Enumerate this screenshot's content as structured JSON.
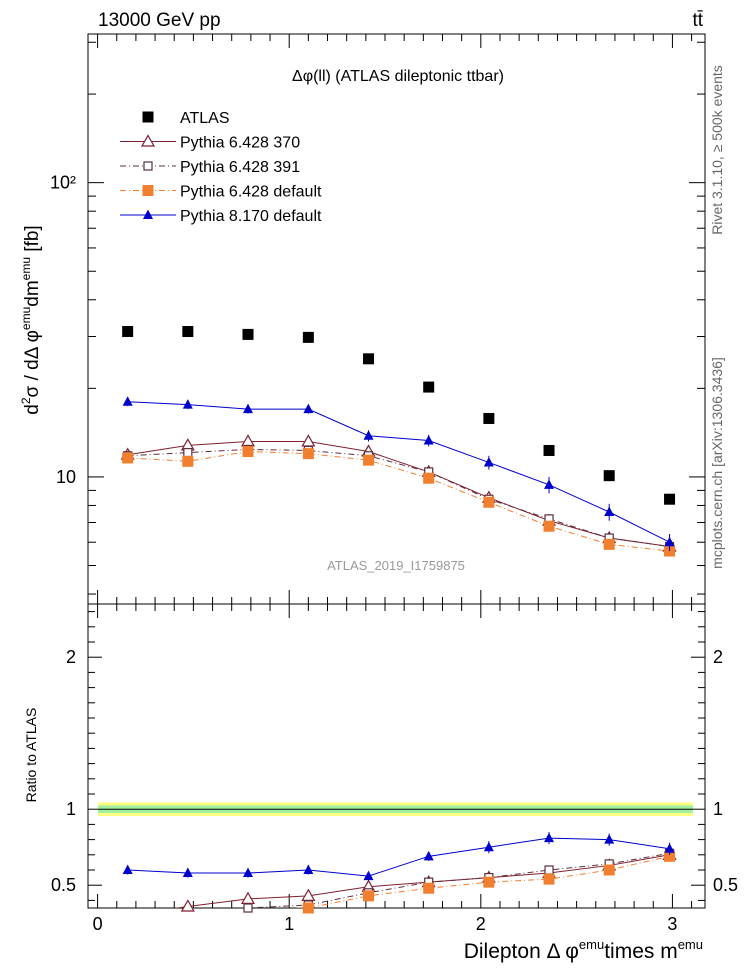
{
  "header": {
    "left": "13000 GeV pp",
    "right": "tt̄"
  },
  "side_labels": {
    "rivet": "Rivet 3.1.10, ≥ 500k events",
    "mcplots": "mcplots.cern.ch [arXiv:1306.3436]"
  },
  "chart_data": {
    "type": "scatter",
    "title": "Δφ(ll) (ATLAS dileptonic ttbar)",
    "watermark": "ATLAS_2019_I1759875",
    "ylabel_main": "d²σ / dΔ φ^emu dm^emu [fb]",
    "ylabel_ratio": "Ratio to ATLAS",
    "xlabel": "Dilepton Δ φ^emu times m^emu",
    "xlim": [
      -0.05,
      3.17
    ],
    "ylim_main": [
      3.7,
      320
    ],
    "ylim_ratio": [
      0.35,
      2.35
    ],
    "yscale_main": "log",
    "main_yticks": [
      10,
      100
    ],
    "main_ytick_labels": [
      "10",
      "10²"
    ],
    "ratio_yticks": [
      0.5,
      1,
      2
    ],
    "ratio_ytick_labels": [
      "0.5",
      "1",
      "2"
    ],
    "xticks": [
      0,
      1,
      2,
      3
    ],
    "xtick_labels": [
      "0",
      "1",
      "2",
      "3"
    ],
    "legend_position": "top-left",
    "x": [
      0.157,
      0.471,
      0.785,
      1.1,
      1.414,
      1.728,
      2.042,
      2.356,
      2.67,
      2.985
    ],
    "series": [
      {
        "name": "ATLAS",
        "color": "#000000",
        "marker": "square-filled",
        "values": [
          31.2,
          31.2,
          30.5,
          29.8,
          25.2,
          20.2,
          15.8,
          12.3,
          10.1,
          8.4
        ],
        "errors": [
          0.6,
          0.6,
          0.6,
          0.6,
          0.5,
          0.4,
          0.3,
          0.25,
          0.2,
          0.2
        ],
        "ratio": [
          1,
          1,
          1,
          1,
          1,
          1,
          1,
          1,
          1,
          1
        ]
      },
      {
        "name": "Pythia 6.428 370",
        "color": "#7f1f2f",
        "marker": "triangle-open",
        "values": [
          11.9,
          12.8,
          13.2,
          13.2,
          12.2,
          10.4,
          8.5,
          7.1,
          6.2,
          5.8
        ],
        "errors": [
          0.3,
          0.3,
          0.3,
          0.3,
          0.3,
          0.25,
          0.2,
          0.2,
          0.2,
          0.2
        ],
        "ratio": [
          0.3,
          0.36,
          0.41,
          0.43,
          0.49,
          0.52,
          0.55,
          0.58,
          0.63,
          0.7
        ]
      },
      {
        "name": "Pythia 6.428 391",
        "color": "#5c2e3a",
        "marker": "square-open",
        "values": [
          11.8,
          12.1,
          12.4,
          12.3,
          11.8,
          10.4,
          8.4,
          7.2,
          6.2,
          5.8
        ],
        "errors": [
          0.3,
          0.3,
          0.3,
          0.3,
          0.3,
          0.25,
          0.2,
          0.2,
          0.2,
          0.2
        ],
        "ratio": [
          0.29,
          0.31,
          0.35,
          0.37,
          0.45,
          0.52,
          0.55,
          0.6,
          0.64,
          0.71
        ]
      },
      {
        "name": "Pythia 6.428 default",
        "color": "#f07f30",
        "marker": "square-filled",
        "values": [
          11.6,
          11.3,
          12.2,
          12.0,
          11.4,
          9.9,
          8.2,
          6.8,
          5.9,
          5.6
        ],
        "errors": [
          0.3,
          0.3,
          0.3,
          0.3,
          0.3,
          0.25,
          0.2,
          0.2,
          0.2,
          0.2
        ],
        "ratio": [
          0.28,
          0.29,
          0.34,
          0.35,
          0.43,
          0.48,
          0.52,
          0.54,
          0.6,
          0.69
        ]
      },
      {
        "name": "Pythia 8.170 default",
        "color": "#0000cc",
        "marker": "triangle-filled",
        "values": [
          18.0,
          17.6,
          17.0,
          17.0,
          13.8,
          13.3,
          11.2,
          9.4,
          7.6,
          6.0
        ],
        "errors": [
          0.6,
          0.6,
          0.6,
          0.6,
          0.6,
          0.6,
          0.6,
          0.6,
          0.5,
          0.4
        ],
        "ratio": [
          0.6,
          0.58,
          0.58,
          0.6,
          0.56,
          0.69,
          0.75,
          0.81,
          0.8,
          0.74
        ],
        "ratio_errors": [
          0.03,
          0.03,
          0.03,
          0.03,
          0.03,
          0.03,
          0.04,
          0.04,
          0.04,
          0.04
        ]
      }
    ],
    "bands": [
      {
        "name": "ATLAS total uncertainty",
        "color": "#ffff80",
        "lo": 0.955,
        "hi": 1.045
      },
      {
        "name": "ATLAS stat uncertainty",
        "color": "#a0f0a0",
        "lo": 0.975,
        "hi": 1.025
      }
    ]
  }
}
